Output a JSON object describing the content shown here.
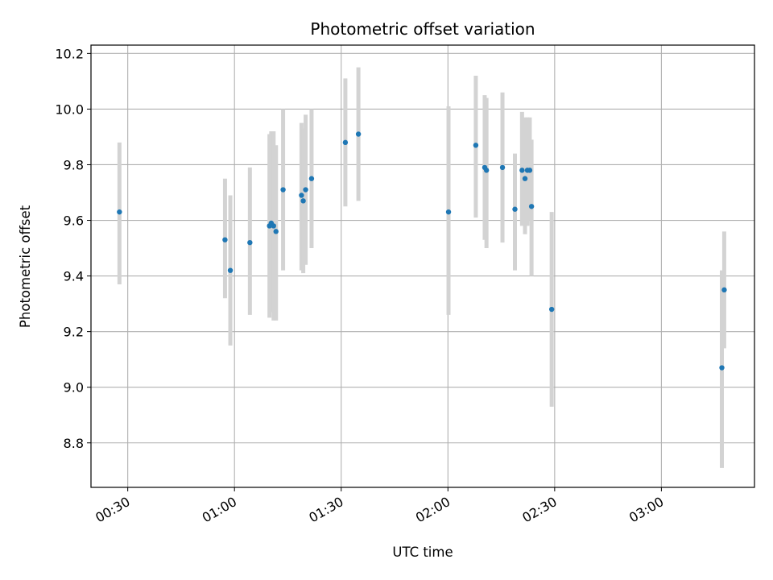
{
  "chart_data": {
    "type": "scatter",
    "title": "Photometric offset variation",
    "xlabel": "UTC time",
    "ylabel": "Photometric offset",
    "xlim": [
      "00:19:40",
      "03:26:10"
    ],
    "ylim": [
      8.64,
      10.23
    ],
    "xticks": [
      "00:30",
      "01:00",
      "01:30",
      "02:00",
      "02:30",
      "03:00"
    ],
    "yticks": [
      8.8,
      9.0,
      9.2,
      9.4,
      9.6,
      9.8,
      10.0,
      10.2
    ],
    "grid": true,
    "point_color": "#1f77b4",
    "errorbar_color": "#d3d3d3",
    "points": [
      {
        "x": "00:27:40",
        "y": 9.63,
        "lo": 9.37,
        "hi": 9.88
      },
      {
        "x": "00:57:20",
        "y": 9.53,
        "lo": 9.32,
        "hi": 9.75
      },
      {
        "x": "00:58:50",
        "y": 9.42,
        "lo": 9.15,
        "hi": 9.69
      },
      {
        "x": "01:04:20",
        "y": 9.52,
        "lo": 9.26,
        "hi": 9.79
      },
      {
        "x": "01:09:50",
        "y": 9.58,
        "lo": 9.25,
        "hi": 9.91
      },
      {
        "x": "01:10:20",
        "y": 9.59,
        "lo": 9.27,
        "hi": 9.92
      },
      {
        "x": "01:11:00",
        "y": 9.58,
        "lo": 9.24,
        "hi": 9.92
      },
      {
        "x": "01:11:40",
        "y": 9.56,
        "lo": 9.24,
        "hi": 9.87
      },
      {
        "x": "01:13:40",
        "y": 9.71,
        "lo": 9.42,
        "hi": 10.0
      },
      {
        "x": "01:18:50",
        "y": 9.69,
        "lo": 9.42,
        "hi": 9.95
      },
      {
        "x": "01:19:20",
        "y": 9.67,
        "lo": 9.41,
        "hi": 9.93
      },
      {
        "x": "01:20:00",
        "y": 9.71,
        "lo": 9.44,
        "hi": 9.98
      },
      {
        "x": "01:21:40",
        "y": 9.75,
        "lo": 9.5,
        "hi": 10.0
      },
      {
        "x": "01:31:10",
        "y": 9.88,
        "lo": 9.65,
        "hi": 10.11
      },
      {
        "x": "01:34:50",
        "y": 9.91,
        "lo": 9.67,
        "hi": 10.15
      },
      {
        "x": "02:00:10",
        "y": 9.63,
        "lo": 9.26,
        "hi": 10.01
      },
      {
        "x": "02:07:50",
        "y": 9.87,
        "lo": 9.61,
        "hi": 10.12
      },
      {
        "x": "02:10:20",
        "y": 9.79,
        "lo": 9.53,
        "hi": 10.05
      },
      {
        "x": "02:10:50",
        "y": 9.78,
        "lo": 9.5,
        "hi": 10.04
      },
      {
        "x": "02:15:20",
        "y": 9.79,
        "lo": 9.52,
        "hi": 10.06
      },
      {
        "x": "02:18:50",
        "y": 9.64,
        "lo": 9.42,
        "hi": 9.84
      },
      {
        "x": "02:20:50",
        "y": 9.78,
        "lo": 9.58,
        "hi": 9.99
      },
      {
        "x": "02:21:40",
        "y": 9.75,
        "lo": 9.55,
        "hi": 9.97
      },
      {
        "x": "02:22:20",
        "y": 9.78,
        "lo": 9.58,
        "hi": 9.97
      },
      {
        "x": "02:23:00",
        "y": 9.78,
        "lo": 9.6,
        "hi": 9.97
      },
      {
        "x": "02:23:30",
        "y": 9.65,
        "lo": 9.4,
        "hi": 9.89
      },
      {
        "x": "02:29:10",
        "y": 9.28,
        "lo": 8.93,
        "hi": 9.63
      },
      {
        "x": "03:17:00",
        "y": 9.07,
        "lo": 8.71,
        "hi": 9.42
      },
      {
        "x": "03:17:40",
        "y": 9.35,
        "lo": 9.14,
        "hi": 9.56
      }
    ]
  }
}
